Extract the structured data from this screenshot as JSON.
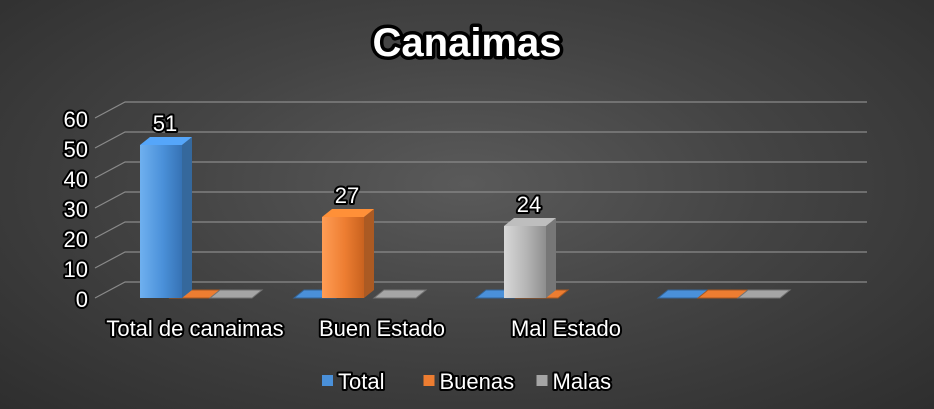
{
  "chart_data": {
    "type": "bar",
    "title": "Canaimas",
    "categories": [
      "Total de canaimas",
      "Buen Estado",
      "Mal Estado",
      ""
    ],
    "series": [
      {
        "name": "Total",
        "color": "#4a90d9",
        "values": [
          51,
          0,
          0,
          0
        ]
      },
      {
        "name": "Buenas",
        "color": "#ed7d31",
        "values": [
          0,
          27,
          0,
          0
        ]
      },
      {
        "name": "Malas",
        "color": "#a5a5a5",
        "values": [
          0,
          0,
          24,
          0
        ]
      }
    ],
    "data_labels": [
      "51",
      "27",
      "24"
    ],
    "ylim": [
      0,
      60
    ],
    "yticks": [
      "0",
      "10",
      "20",
      "30",
      "40",
      "50",
      "60"
    ],
    "grid": true,
    "legend_position": "bottom",
    "three_d": true
  }
}
